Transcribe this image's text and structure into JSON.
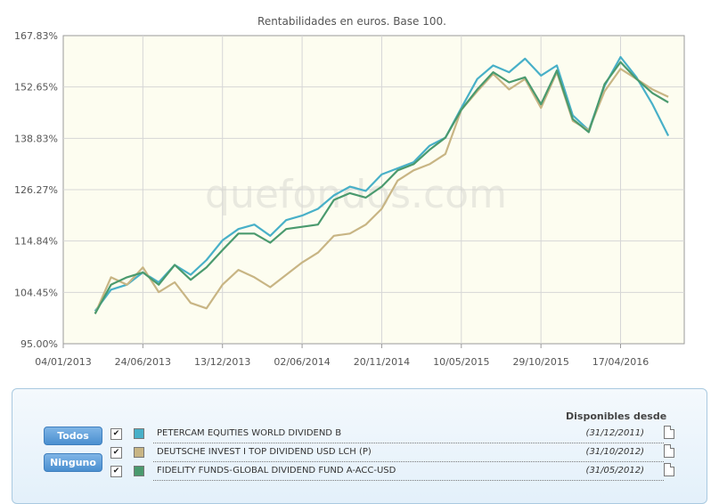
{
  "chart_data": {
    "type": "line",
    "title": "Rentabilidades en euros. Base 100.",
    "watermark": "quefondos.com",
    "xlabel": "",
    "ylabel": "",
    "ylim": [
      95.0,
      167.83
    ],
    "xlim": [
      0,
      39
    ],
    "y_ticks": [
      "95.00%",
      "104.45%",
      "114.84%",
      "126.27%",
      "138.83%",
      "152.65%",
      "167.83%"
    ],
    "x_ticks": [
      "04/01/2013",
      "24/06/2013",
      "13/12/2013",
      "02/06/2014",
      "20/11/2014",
      "10/05/2015",
      "29/10/2015",
      "17/04/2016"
    ],
    "background": "#fdfdf0",
    "series": [
      {
        "name": "PETERCAM EQUITIES WORLD DIVIDEND B",
        "color": "#48b0c8",
        "x": [
          2,
          3,
          4,
          5,
          6,
          7,
          8,
          9,
          10,
          11,
          12,
          13,
          14,
          15,
          16,
          17,
          18,
          19,
          20,
          21,
          22,
          23,
          24,
          25,
          26,
          27,
          28,
          29,
          30,
          31,
          32,
          33,
          34,
          35,
          36,
          37,
          38
        ],
        "values": [
          101.0,
          105.0,
          106.0,
          108.5,
          106.5,
          110.0,
          108.0,
          111.0,
          115.0,
          117.5,
          118.5,
          116.0,
          119.5,
          120.5,
          122.0,
          125.0,
          127.0,
          126.0,
          130.0,
          131.5,
          133.0,
          137.0,
          139.0,
          147.0,
          155.0,
          159.0,
          157.0,
          161.0,
          156.0,
          159.0,
          145.0,
          141.0,
          153.0,
          161.5,
          155.5,
          148.0,
          139.5
        ]
      },
      {
        "name": "DEUTSCHE INVEST I TOP DIVIDEND USD LCH (P)",
        "color": "#c8b584",
        "x": [
          2,
          3,
          4,
          5,
          6,
          7,
          8,
          9,
          10,
          11,
          12,
          13,
          14,
          15,
          16,
          17,
          18,
          19,
          20,
          21,
          22,
          23,
          24,
          25,
          26,
          27,
          28,
          29,
          30,
          31,
          32,
          33,
          34,
          35,
          36,
          37,
          38
        ],
        "values": [
          100.5,
          107.5,
          106.0,
          109.5,
          104.5,
          106.5,
          102.5,
          101.5,
          106.0,
          109.0,
          107.5,
          105.5,
          108.0,
          110.5,
          112.5,
          116.0,
          116.5,
          118.5,
          122.0,
          128.5,
          131.0,
          132.5,
          135.0,
          146.5,
          151.5,
          156.5,
          152.0,
          155.0,
          147.0,
          157.0,
          143.5,
          141.0,
          151.5,
          158.0,
          155.0,
          152.0,
          150.0
        ]
      },
      {
        "name": "FIDELITY FUNDS-GLOBAL DIVIDEND FUND A-ACC-USD",
        "color": "#4a9a6e",
        "x": [
          2,
          3,
          4,
          5,
          6,
          7,
          8,
          9,
          10,
          11,
          12,
          13,
          14,
          15,
          16,
          17,
          18,
          19,
          20,
          21,
          22,
          23,
          24,
          25,
          26,
          27,
          28,
          29,
          30,
          31,
          32,
          33,
          34,
          35,
          36,
          37,
          38
        ],
        "values": [
          100.5,
          106.0,
          107.5,
          108.5,
          106.0,
          110.0,
          107.0,
          109.5,
          113.0,
          116.5,
          116.5,
          114.5,
          117.5,
          118.0,
          118.5,
          124.0,
          125.5,
          124.5,
          127.0,
          131.0,
          132.5,
          136.0,
          139.0,
          146.5,
          152.0,
          157.0,
          154.0,
          155.5,
          148.0,
          157.5,
          144.0,
          140.5,
          153.5,
          160.0,
          155.0,
          151.0,
          148.5
        ]
      }
    ]
  },
  "controls": {
    "all_label": "Todos",
    "none_label": "Ninguno",
    "since_header": "Disponibles desde",
    "check_glyph": "✔"
  },
  "legend": [
    {
      "name": "PETERCAM EQUITIES WORLD DIVIDEND B",
      "date": "(31/12/2011)",
      "color": "#48b0c8"
    },
    {
      "name": "DEUTSCHE INVEST I TOP DIVIDEND USD LCH (P)",
      "date": "(31/10/2012)",
      "color": "#c8b584"
    },
    {
      "name": "FIDELITY FUNDS-GLOBAL DIVIDEND FUND A-ACC-USD",
      "date": "(31/05/2012)",
      "color": "#4a9a6e"
    }
  ]
}
